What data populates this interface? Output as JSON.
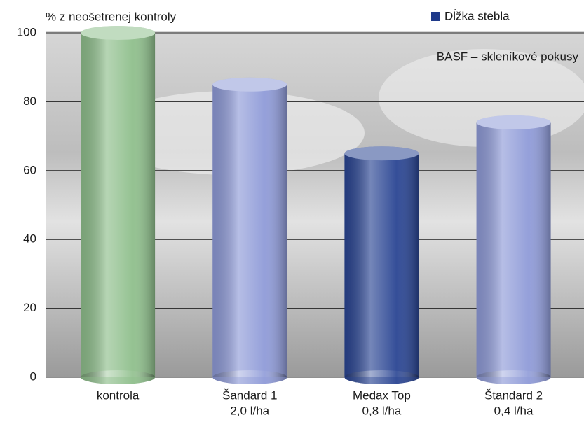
{
  "chart_data": {
    "type": "bar",
    "title": "% z neošetrenej kontroly",
    "annotation": "BASF – skleníkové pokusy",
    "categories": [
      [
        "kontrola"
      ],
      [
        "Šandard 1",
        "2,0 l/ha"
      ],
      [
        "Medax Top",
        "0,8 l/ha"
      ],
      [
        "Štandard 2",
        "0,4 l/ha"
      ]
    ],
    "series": [
      {
        "name": "Dĺžka stebla",
        "color": "#1f3a8a",
        "values": [
          100,
          85,
          65,
          74
        ],
        "colors": [
          "#8fbf8c",
          "#8f9bd8",
          "#2a4593",
          "#8f9bd8"
        ]
      }
    ],
    "ylim": [
      0,
      100
    ],
    "yticks": [
      0,
      20,
      40,
      60,
      80,
      100
    ],
    "grid": true
  }
}
